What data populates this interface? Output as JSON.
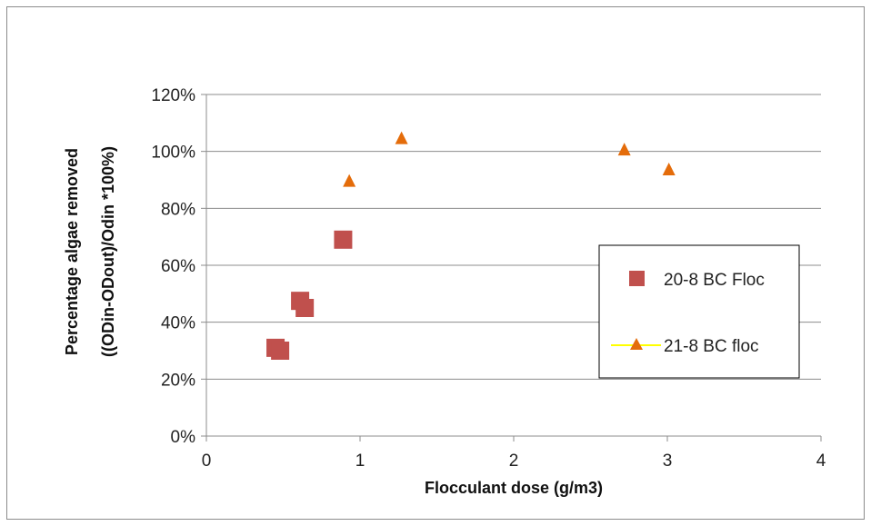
{
  "chart_data": {
    "type": "scatter",
    "title": "",
    "xlabel": "Flocculant dose (g/m3)",
    "ylabel": [
      "Percentage algae removed",
      "((ODin-ODout)/Odin *100%)"
    ],
    "xlim": [
      0,
      4
    ],
    "ylim": [
      0,
      1.2
    ],
    "x_ticks": [
      0,
      1,
      2,
      3,
      4
    ],
    "y_ticks": [
      0,
      0.2,
      0.4,
      0.6,
      0.8,
      1.0,
      1.2
    ],
    "x_tick_labels": [
      "0",
      "1",
      "2",
      "3",
      "4"
    ],
    "y_tick_labels": [
      "0%",
      "20%",
      "40%",
      "60%",
      "80%",
      "100%",
      "120%"
    ],
    "grid": "horizontal",
    "legend_position": "right",
    "series": [
      {
        "name": "20-8 BC Floc",
        "marker": "square",
        "color": "#c0504d",
        "points": [
          [
            0.45,
            0.31
          ],
          [
            0.48,
            0.3
          ],
          [
            0.61,
            0.475
          ],
          [
            0.64,
            0.45
          ],
          [
            0.89,
            0.69
          ]
        ]
      },
      {
        "name": "21-8 BC floc",
        "marker": "triangle",
        "color": "#e46c0a",
        "line_color": "#ffff00",
        "points": [
          [
            0.93,
            0.895
          ],
          [
            1.27,
            1.045
          ],
          [
            2.72,
            1.005
          ],
          [
            3.01,
            0.935
          ]
        ]
      }
    ]
  }
}
